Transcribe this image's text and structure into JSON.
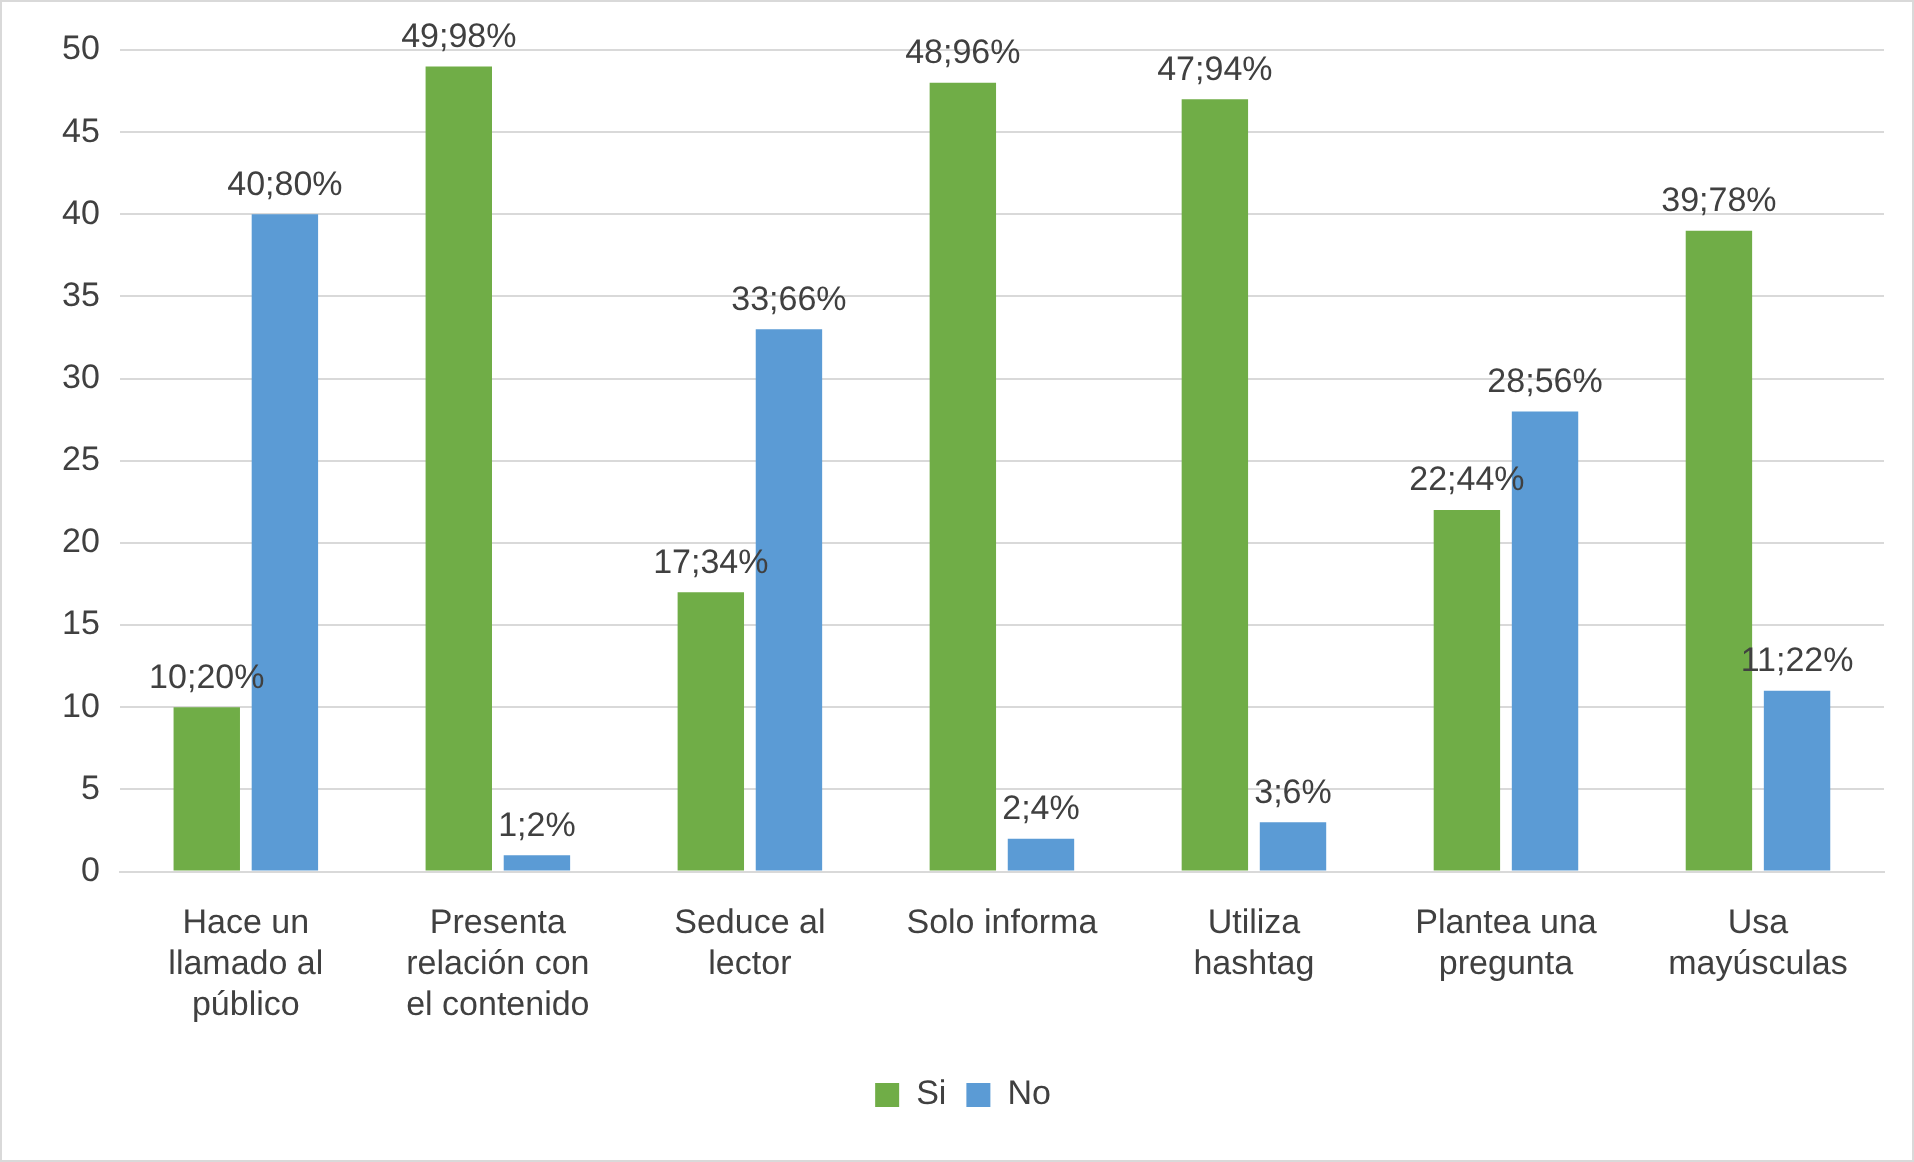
{
  "chart_data": {
    "type": "bar",
    "categories": [
      "Hace un llamado al público",
      "Presenta relación con el contenido",
      "Seduce al lector",
      "Solo informa",
      "Utiliza hashtag",
      "Plantea una pregunta",
      "Usa mayúsculas"
    ],
    "series": [
      {
        "name": "Si",
        "color": "#70ad47",
        "values": [
          10,
          49,
          17,
          48,
          47,
          22,
          39
        ],
        "value_labels": [
          "10;20%",
          "49;98%",
          "17;34%",
          "48;96%",
          "47;94%",
          "22;44%",
          "39;78%"
        ]
      },
      {
        "name": "No",
        "color": "#5b9bd5",
        "values": [
          40,
          1,
          33,
          2,
          3,
          28,
          11
        ],
        "value_labels": [
          "40;80%",
          "1;2%",
          "33;66%",
          "2;4%",
          "3;6%",
          "28;56%",
          "11;22%"
        ]
      }
    ],
    "ylim": [
      0,
      50
    ],
    "yticks": [
      0,
      5,
      10,
      15,
      20,
      25,
      30,
      35,
      40,
      45,
      50
    ],
    "grid": "y",
    "legend": "bottom"
  }
}
